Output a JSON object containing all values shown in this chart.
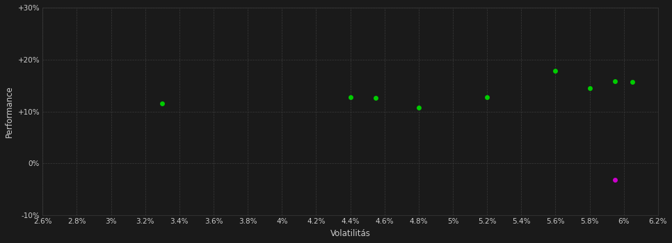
{
  "background_color": "#1a1a1a",
  "plot_bg_color": "#1a1a1a",
  "grid_color": "#3a3a3a",
  "xlabel": "Volatilitás",
  "ylabel": "Performance",
  "xlim": [
    0.026,
    0.062
  ],
  "ylim": [
    -0.1,
    0.3
  ],
  "xticks": [
    0.026,
    0.028,
    0.03,
    0.032,
    0.034,
    0.036,
    0.038,
    0.04,
    0.042,
    0.044,
    0.046,
    0.048,
    0.05,
    0.052,
    0.054,
    0.056,
    0.058,
    0.06,
    0.062
  ],
  "yticks": [
    -0.1,
    0.0,
    0.1,
    0.2,
    0.3
  ],
  "ytick_labels": [
    "-10%",
    "0%",
    "+10%",
    "+20%",
    "+30%"
  ],
  "xtick_labels": [
    "2.6%",
    "2.8%",
    "3%",
    "3.2%",
    "3.4%",
    "3.6%",
    "3.8%",
    "4%",
    "4.2%",
    "4.4%",
    "4.6%",
    "4.8%",
    "5%",
    "5.2%",
    "5.4%",
    "5.6%",
    "5.8%",
    "6%",
    "6.2%"
  ],
  "green_points_xy": [
    [
      0.033,
      0.115
    ],
    [
      0.044,
      0.128
    ],
    [
      0.0455,
      0.126
    ],
    [
      0.048,
      0.108
    ],
    [
      0.052,
      0.127
    ],
    [
      0.056,
      0.178
    ],
    [
      0.058,
      0.145
    ],
    [
      0.0595,
      0.158
    ],
    [
      0.0605,
      0.157
    ]
  ],
  "magenta_point": [
    0.0595,
    -0.032
  ],
  "green_color": "#00cc00",
  "magenta_color": "#cc00cc",
  "point_size": 25,
  "font_color": "#cccccc",
  "tick_fontsize": 7.5,
  "label_fontsize": 8.5
}
